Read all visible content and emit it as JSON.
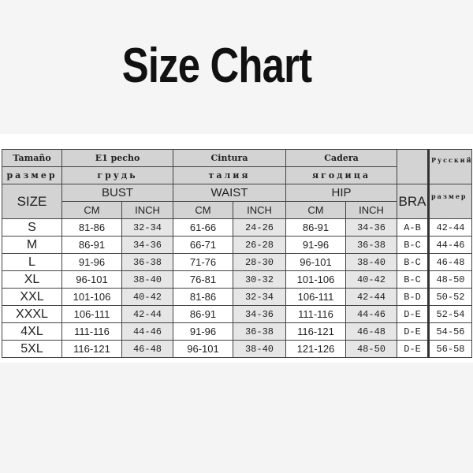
{
  "title": "Size Chart",
  "header": {
    "row1": {
      "size": "Tamaño",
      "bust": "E1 pecho",
      "waist": "Cintura",
      "hip": "Cadera",
      "russian": "Русский"
    },
    "row2": {
      "size": "размер",
      "bust": "грудь",
      "waist": "талия",
      "hip": "ягодица"
    },
    "row3": {
      "size": "SIZE",
      "bust": "BUST",
      "waist": "WAIST",
      "hip": "HIP",
      "bra": "BRA",
      "russian_size": "размер"
    },
    "units": {
      "cm": "CM",
      "inch": "INCH"
    }
  },
  "rows": [
    {
      "size": "S",
      "bust_cm": "81-86",
      "bust_in": "32-34",
      "waist_cm": "61-66",
      "waist_in": "24-26",
      "hip_cm": "86-91",
      "hip_in": "34-36",
      "bra": "A-B",
      "ru": "42-44"
    },
    {
      "size": "M",
      "bust_cm": "86-91",
      "bust_in": "34-36",
      "waist_cm": "66-71",
      "waist_in": "26-28",
      "hip_cm": "91-96",
      "hip_in": "36-38",
      "bra": "B-C",
      "ru": "44-46"
    },
    {
      "size": "L",
      "bust_cm": "91-96",
      "bust_in": "36-38",
      "waist_cm": "71-76",
      "waist_in": "28-30",
      "hip_cm": "96-101",
      "hip_in": "38-40",
      "bra": "B-C",
      "ru": "46-48"
    },
    {
      "size": "XL",
      "bust_cm": "96-101",
      "bust_in": "38-40",
      "waist_cm": "76-81",
      "waist_in": "30-32",
      "hip_cm": "101-106",
      "hip_in": "40-42",
      "bra": "B-C",
      "ru": "48-50"
    },
    {
      "size": "XXL",
      "bust_cm": "101-106",
      "bust_in": "40-42",
      "waist_cm": "81-86",
      "waist_in": "32-34",
      "hip_cm": "106-111",
      "hip_in": "42-44",
      "bra": "B-D",
      "ru": "50-52"
    },
    {
      "size": "XXXL",
      "bust_cm": "106-111",
      "bust_in": "42-44",
      "waist_cm": "86-91",
      "waist_in": "34-36",
      "hip_cm": "111-116",
      "hip_in": "44-46",
      "bra": "D-E",
      "ru": "52-54"
    },
    {
      "size": "4XL",
      "bust_cm": "111-116",
      "bust_in": "44-46",
      "waist_cm": "91-96",
      "waist_in": "36-38",
      "hip_cm": "116-121",
      "hip_in": "46-48",
      "bra": "D-E",
      "ru": "54-56"
    },
    {
      "size": "5XL",
      "bust_cm": "116-121",
      "bust_in": "46-48",
      "waist_cm": "96-101",
      "waist_in": "38-40",
      "hip_cm": "121-126",
      "hip_in": "48-50",
      "bra": "D-E",
      "ru": "56-58"
    }
  ]
}
